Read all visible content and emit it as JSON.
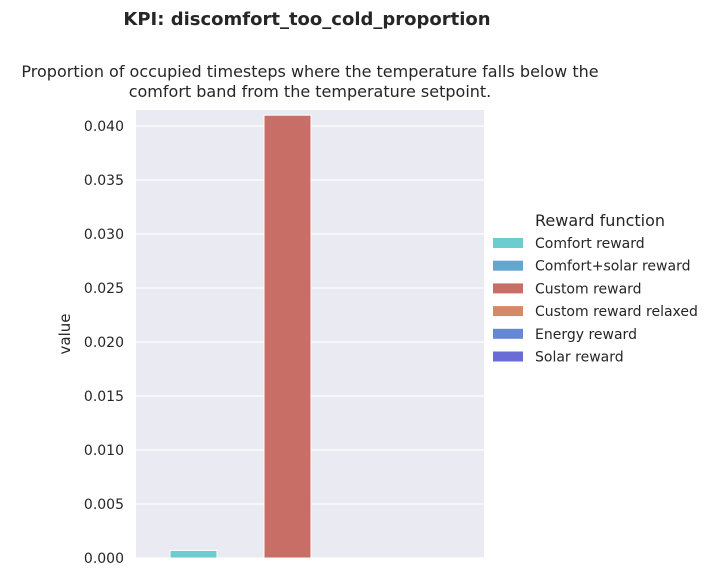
{
  "suptitle": "KPI: discomfort_too_cold_proportion",
  "subtitle_lines": [
    "Proportion of occupied timesteps where the temperature falls below the",
    "comfort band from the temperature setpoint."
  ],
  "chart_data": {
    "type": "bar",
    "xlabel": "",
    "ylabel": "value",
    "ylim": [
      0,
      0.043
    ],
    "yticks": [
      "0.000",
      "0.005",
      "0.010",
      "0.015",
      "0.020",
      "0.025",
      "0.030",
      "0.035",
      "0.040"
    ],
    "grid": true,
    "legend": {
      "title": "Reward function",
      "placement": "right"
    },
    "series": [
      {
        "name": "Comfort reward",
        "value": 0.0007,
        "color": "#6dcccf"
      },
      {
        "name": "Comfort+solar reward",
        "value": 0,
        "color": "#64a6cd"
      },
      {
        "name": "Custom reward",
        "value": 0.041,
        "color": "#c96d67"
      },
      {
        "name": "Custom reward relaxed",
        "value": 0,
        "color": "#d48b65"
      },
      {
        "name": "Energy reward",
        "value": 0,
        "color": "#6588d4"
      },
      {
        "name": "Solar reward",
        "value": 0,
        "color": "#6a6bd4"
      }
    ]
  }
}
